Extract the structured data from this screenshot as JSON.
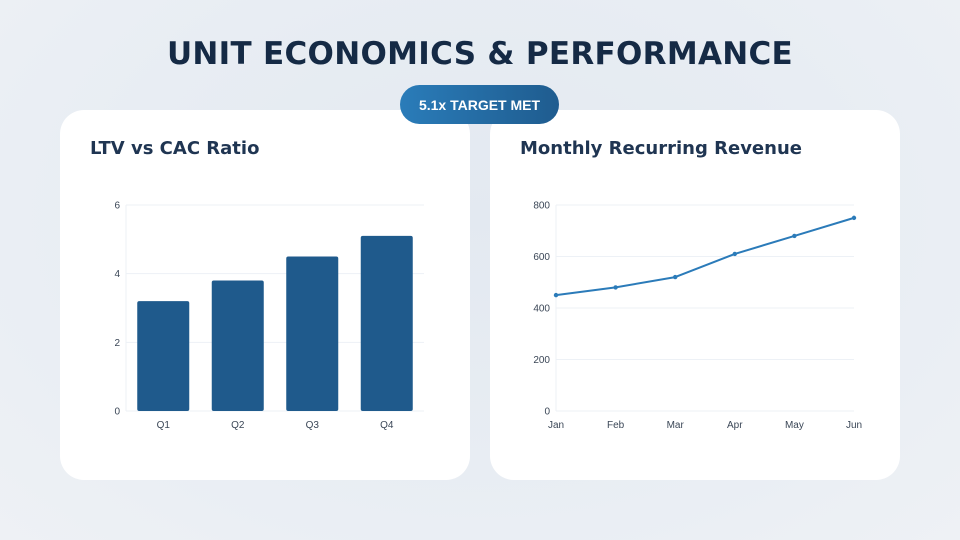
{
  "header": {
    "title": "UNIT ECONOMICS & PERFORMANCE",
    "badge": "5.1x TARGET MET"
  },
  "colors": {
    "title": "#152a45",
    "bar": "#1f5a8c",
    "line": "#2b7bb9",
    "badge_start": "#2a7cb9",
    "badge_end": "#1f5c8f"
  },
  "cards": [
    {
      "title": "LTV vs CAC Ratio"
    },
    {
      "title": "Monthly Recurring Revenue"
    }
  ],
  "chart_data": [
    {
      "type": "bar",
      "title": "LTV vs CAC Ratio",
      "categories": [
        "Q1",
        "Q2",
        "Q3",
        "Q4"
      ],
      "values": [
        3.2,
        3.8,
        4.5,
        5.1
      ],
      "xlabel": "",
      "ylabel": "",
      "ylim": [
        0,
        6
      ],
      "yticks": [
        0,
        2,
        4,
        6
      ],
      "grid": true,
      "legend": "none",
      "color": "#1f5a8c"
    },
    {
      "type": "line",
      "title": "Monthly Recurring Revenue",
      "categories": [
        "Jan",
        "Feb",
        "Mar",
        "Apr",
        "May",
        "Jun"
      ],
      "values": [
        450,
        480,
        520,
        610,
        680,
        750
      ],
      "xlabel": "",
      "ylabel": "",
      "ylim": [
        0,
        800
      ],
      "yticks": [
        0,
        200,
        400,
        600,
        800
      ],
      "grid": true,
      "legend": "none",
      "color": "#2b7bb9"
    }
  ]
}
